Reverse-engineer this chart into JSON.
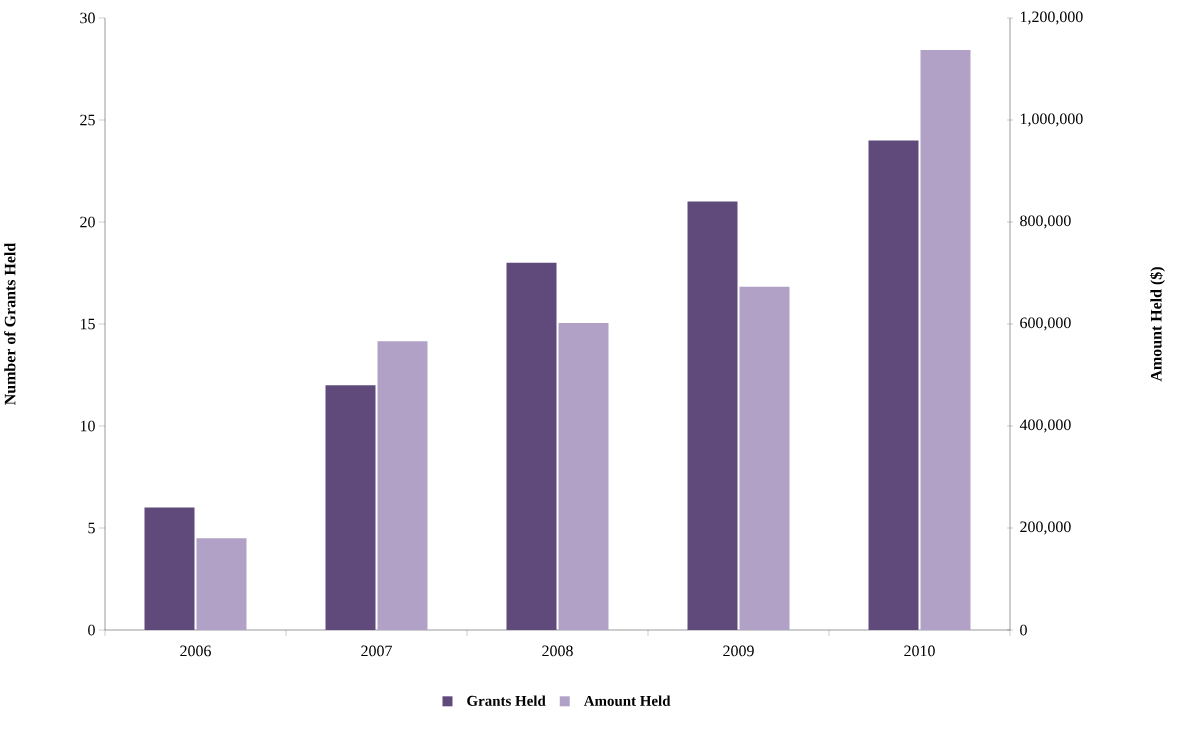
{
  "chart_data": {
    "type": "bar",
    "ylabel": "Number of Grants Held",
    "y2label": "Amount Held ($)",
    "categories": [
      "2006",
      "2007",
      "2008",
      "2009",
      "2010"
    ],
    "series": [
      {
        "name": "Grants Held",
        "color": "#5f4a7b",
        "values": [
          6,
          12,
          18,
          21,
          24
        ]
      },
      {
        "name": "Amount Held",
        "color": "#b1a1c7",
        "axis": "y2",
        "values": [
          180000,
          566000,
          602000,
          673000,
          1137000
        ]
      }
    ],
    "ylim": [
      0,
      30
    ],
    "yticks": [
      0,
      5,
      10,
      15,
      20,
      25,
      30
    ],
    "y2lim": [
      0,
      1200000
    ],
    "y2ticks": [
      {
        "value": 0,
        "label": "0"
      },
      {
        "value": 200000,
        "label": "200,000"
      },
      {
        "value": 400000,
        "label": "400,000"
      },
      {
        "value": 600000,
        "label": "600,000"
      },
      {
        "value": 800000,
        "label": "800,000"
      },
      {
        "value": 1000000,
        "label": "1,000,000"
      },
      {
        "value": 1200000,
        "label": "1,200,000"
      }
    ],
    "grid": false,
    "legend": "bottom"
  }
}
